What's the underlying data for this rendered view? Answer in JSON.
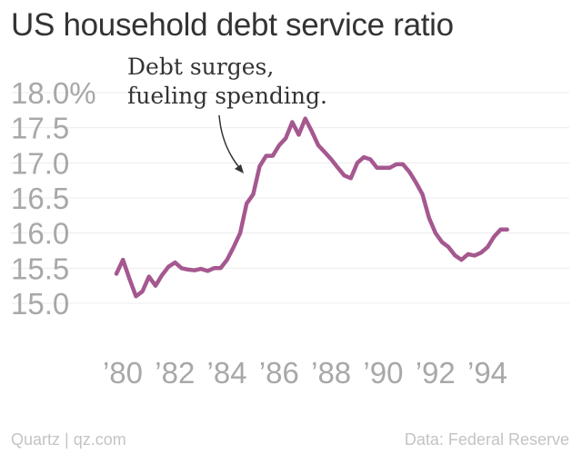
{
  "title": "US household debt service ratio",
  "annotation": {
    "lines": [
      "Debt surges,",
      "fueling spending."
    ]
  },
  "footer": {
    "source_left": "Quartz | qz.com",
    "source_right": "Data: Federal Reserve"
  },
  "colors": {
    "line": "#a5588f",
    "title": "#333333",
    "ticks": "#a8a8a8",
    "grid": "#ececec",
    "footer": "#c4c4c4"
  },
  "chart_data": {
    "type": "line",
    "title": "US household debt service ratio",
    "xlabel": "",
    "ylabel": "",
    "ylim": [
      15.0,
      18.0
    ],
    "xlim": [
      1980,
      1995.5
    ],
    "grid": true,
    "y_ticks": [
      15.0,
      15.5,
      16.0,
      16.5,
      17.0,
      17.5,
      18.0
    ],
    "y_tick_labels": [
      "15.0",
      "15.5",
      "16.0",
      "16.5",
      "17.0",
      "17.5",
      "18.0%"
    ],
    "x_ticks": [
      1980,
      1982,
      1984,
      1986,
      1988,
      1990,
      1992,
      1994
    ],
    "x_tick_labels": [
      "’80",
      "’82",
      "’84",
      "’86",
      "’88",
      "’90",
      "’92",
      "’94"
    ],
    "series": [
      {
        "x": [
          1980.0,
          1980.25,
          1980.5,
          1980.75,
          1981.0,
          1981.25,
          1981.5,
          1981.75,
          1982.0,
          1982.25,
          1982.5,
          1982.75,
          1983.0,
          1983.25,
          1983.5,
          1983.75,
          1984.0,
          1984.25,
          1984.5,
          1984.75,
          1985.0,
          1985.25,
          1985.5,
          1985.75,
          1986.0,
          1986.25,
          1986.5,
          1986.75,
          1987.0,
          1987.25,
          1987.5,
          1987.75,
          1988.0,
          1988.25,
          1988.5,
          1988.75,
          1989.0,
          1989.25,
          1989.5,
          1989.75,
          1990.0,
          1990.25,
          1990.5,
          1990.75,
          1991.0,
          1991.25,
          1991.5,
          1991.75,
          1992.0,
          1992.25,
          1992.5,
          1992.75,
          1993.0,
          1993.25,
          1993.5,
          1993.75,
          1994.0,
          1994.25,
          1994.5,
          1994.75,
          1995.0
        ],
        "values": [
          15.42,
          15.62,
          15.35,
          15.1,
          15.17,
          15.38,
          15.25,
          15.4,
          15.52,
          15.58,
          15.5,
          15.48,
          15.47,
          15.49,
          15.46,
          15.5,
          15.5,
          15.62,
          15.8,
          16.0,
          16.42,
          16.55,
          16.95,
          17.1,
          17.1,
          17.25,
          17.35,
          17.58,
          17.4,
          17.63,
          17.45,
          17.25,
          17.15,
          17.05,
          16.93,
          16.82,
          16.78,
          17.0,
          17.08,
          17.05,
          16.93,
          16.93,
          16.93,
          16.98,
          16.98,
          16.87,
          16.72,
          16.55,
          16.22,
          16.0,
          15.87,
          15.8,
          15.68,
          15.62,
          15.7,
          15.68,
          15.72,
          15.8,
          15.95,
          16.05,
          16.05
        ]
      }
    ]
  }
}
